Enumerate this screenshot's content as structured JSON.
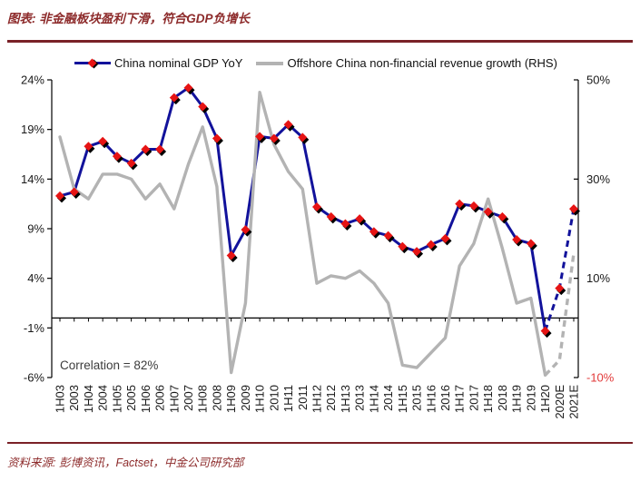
{
  "header": {
    "title": "图表: 非金融板块盈利下滑，符合GDP负增长"
  },
  "footer": {
    "source": "资料来源: 彭博资讯，Factset，中金公司研究部"
  },
  "legend": [
    {
      "label": "China nominal GDP YoY",
      "series": "gdp"
    },
    {
      "label": "Offshore China non-financial revenue growth (RHS)",
      "series": "revenue"
    }
  ],
  "annotation": {
    "text": "Correlation = 82%"
  },
  "colors": {
    "navy": "#12129b",
    "marker_red": "#e61414",
    "marker_shadow": "#000000",
    "gray": "#b3b3b3",
    "maroon_rule": "#7a2127",
    "title_red": "#8d2b2b",
    "axis_line": "#000000",
    "axis_text": "#1a1a1a",
    "neg_tick_red": "#e23b3b"
  },
  "chart_data": {
    "type": "line",
    "title": "",
    "legend_position": "top",
    "grid": false,
    "categories": [
      "1H03",
      "2003",
      "1H04",
      "2004",
      "1H05",
      "2005",
      "1H06",
      "2006",
      "1H07",
      "2007",
      "1H08",
      "2008",
      "1H09",
      "2009",
      "1H10",
      "2010",
      "1H11",
      "2011",
      "1H12",
      "2012",
      "1H13",
      "2013",
      "1H14",
      "2014",
      "1H15",
      "2015",
      "1H16",
      "2016",
      "1H17",
      "2017",
      "1H18",
      "2018",
      "1H19",
      "2019",
      "1H20",
      "2020E",
      "2021E"
    ],
    "series": [
      {
        "name": "China nominal GDP YoY",
        "axis": "left",
        "style": "navy-diamond",
        "dashed_from_index": 34,
        "values": [
          12.3,
          12.7,
          17.3,
          17.8,
          16.3,
          15.6,
          17.0,
          17.0,
          22.2,
          23.2,
          21.3,
          18.1,
          6.3,
          8.9,
          18.3,
          18.1,
          19.5,
          18.2,
          11.2,
          10.2,
          9.5,
          10.0,
          8.7,
          8.3,
          7.2,
          6.7,
          7.4,
          8.0,
          11.5,
          11.3,
          10.7,
          10.2,
          7.9,
          7.5,
          -1.3,
          3.0,
          11.0
        ]
      },
      {
        "name": "Offshore China non-financial revenue growth (RHS)",
        "axis": "right",
        "style": "gray",
        "dashed_from_index": 34,
        "values": [
          38.5,
          28,
          26,
          31,
          31,
          30,
          26,
          29,
          24,
          33,
          40.5,
          28.5,
          -9,
          5,
          47.5,
          37,
          31.5,
          28,
          9,
          10.5,
          10,
          11.5,
          9,
          5,
          -7.5,
          -8,
          -5,
          -2,
          12.5,
          17,
          26,
          16,
          5,
          6,
          -9.5,
          -6.5,
          15
        ]
      }
    ],
    "left_axis": {
      "min": -6,
      "max": 24,
      "ticks": [
        24,
        19,
        14,
        9,
        4,
        -1,
        -6
      ],
      "format": "percent"
    },
    "right_axis": {
      "min": -10,
      "max": 50,
      "ticks": [
        50,
        30,
        10,
        -10
      ],
      "format": "percent"
    },
    "x_axis_baseline_value": 0,
    "annotation": "Correlation = 82%"
  }
}
